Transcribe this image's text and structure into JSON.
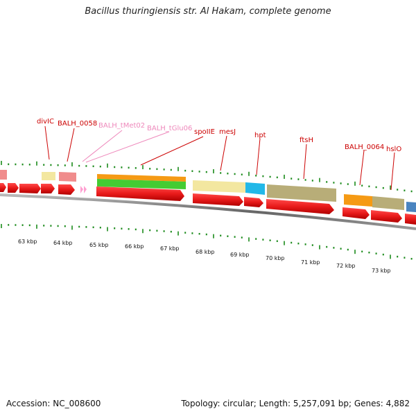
{
  "title": "Bacillus thuringiensis str. Al Hakam, complete genome",
  "accession_text": "Accession: NC_008600",
  "summary_text": "Topology: circular; Length: 5,257,091 bp; Genes: 4,882",
  "colors": {
    "forward_cds": "#e81a1a",
    "reverse_cds": "#ee2222",
    "trna": "#ff9fd1",
    "backbone": "#888888",
    "tick": "#1a8a1a",
    "label_red": "#cc0000",
    "label_pink": "#ee88bb",
    "cog_pink": "#f08c8c",
    "cog_yellow": "#f3e7a0",
    "cog_orange": "#f59a14",
    "cog_green": "#44cc33",
    "cog_cyan": "#22b8e8",
    "cog_olive": "#b8ad78",
    "cog_blue": "#4a84c0"
  },
  "map": {
    "kbp_labels": [
      "63 kbp",
      "64 kbp",
      "65 kbp",
      "66 kbp",
      "67 kbp",
      "68 kbp",
      "69 kbp",
      "70 kbp",
      "71 kbp",
      "72 kbp",
      "73 kbp"
    ],
    "gene_labels": [
      {
        "text": "divIC",
        "type": "cds"
      },
      {
        "text": "BALH_0058",
        "type": "cds"
      },
      {
        "text": "BALH_tMet02",
        "type": "trna"
      },
      {
        "text": "BALH_tGlu06",
        "type": "trna"
      },
      {
        "text": "spoIIE",
        "type": "cds"
      },
      {
        "text": "mesJ",
        "type": "cds"
      },
      {
        "text": "hpt",
        "type": "cds"
      },
      {
        "text": "ftsH",
        "type": "cds"
      },
      {
        "text": "BALH_0064",
        "type": "cds"
      },
      {
        "text": "hslO",
        "type": "cds"
      }
    ]
  }
}
